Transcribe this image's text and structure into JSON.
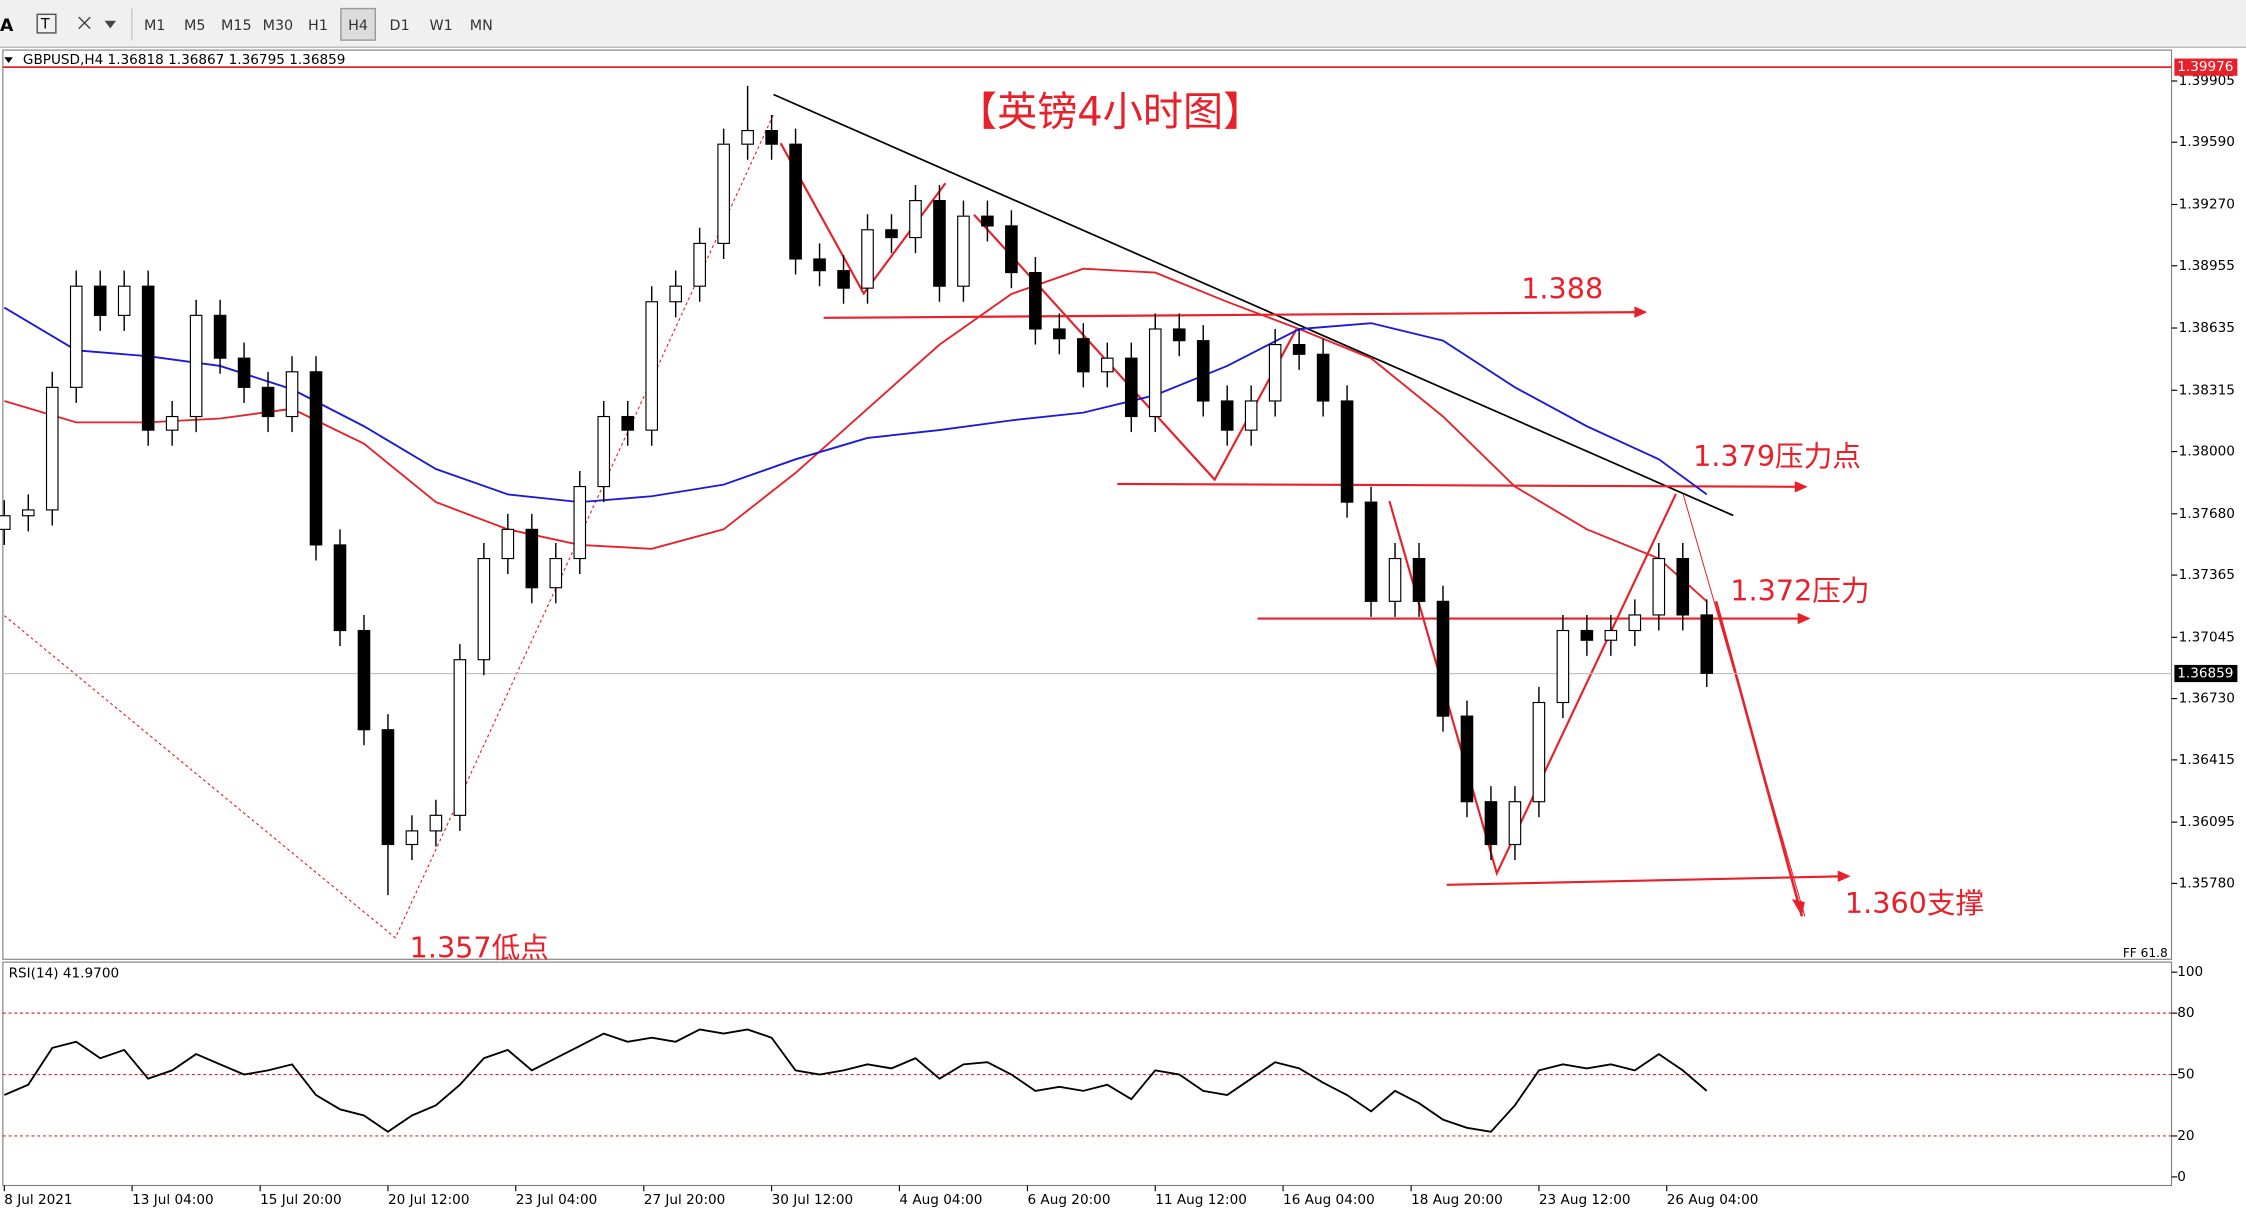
{
  "toolbar": {
    "buttons": [
      "M1",
      "M5",
      "M15",
      "M30",
      "H1",
      "H4",
      "D1",
      "W1",
      "MN"
    ]
  },
  "chart_data": {
    "type": "candlestick",
    "title": "【英镑4小时图】",
    "info": "GBPUSD,H4  1.36818 1.36867 1.36795 1.36859",
    "open": [
      1.376,
      1.3767,
      1.377,
      1.3833,
      1.3885,
      1.387,
      1.3885,
      1.3811,
      1.3818,
      1.387,
      1.3848,
      1.3833,
      1.3818,
      1.3841,
      1.3752,
      1.3708,
      1.3657,
      1.3598,
      1.3605,
      1.3613,
      1.3693,
      1.3745,
      1.376,
      1.373,
      1.3745,
      1.3782,
      1.3818,
      1.3811,
      1.3877,
      1.3885,
      1.3907,
      1.3958,
      1.3965,
      1.3958,
      1.3899,
      1.3893,
      1.3884,
      1.3914,
      1.391,
      1.3929,
      1.3885,
      1.3921,
      1.3916,
      1.3892,
      1.3863,
      1.3858,
      1.3841,
      1.3848,
      1.3818,
      1.3863,
      1.3857,
      1.3826,
      1.3811,
      1.3826,
      1.3855,
      1.385,
      1.3826,
      1.3774,
      1.3723,
      1.3745,
      1.3723,
      1.3664,
      1.362,
      1.3598,
      1.362,
      1.3671,
      1.3708,
      1.3703,
      1.3708,
      1.3716,
      1.3745,
      1.3716
    ],
    "high": [
      1.3775,
      1.3778,
      1.3841,
      1.3893,
      1.3893,
      1.3893,
      1.3893,
      1.3826,
      1.3878,
      1.3878,
      1.3856,
      1.3841,
      1.3849,
      1.3849,
      1.376,
      1.3716,
      1.3665,
      1.3613,
      1.3621,
      1.3701,
      1.3753,
      1.3768,
      1.3768,
      1.3753,
      1.379,
      1.3826,
      1.3826,
      1.3885,
      1.3893,
      1.3915,
      1.3966,
      1.3988,
      1.3973,
      1.3966,
      1.3907,
      1.3901,
      1.3922,
      1.3922,
      1.3937,
      1.3937,
      1.3929,
      1.3929,
      1.3924,
      1.39,
      1.3871,
      1.3866,
      1.3856,
      1.3856,
      1.3871,
      1.3871,
      1.3865,
      1.3834,
      1.3834,
      1.3863,
      1.3863,
      1.3858,
      1.3834,
      1.3782,
      1.3753,
      1.3753,
      1.3731,
      1.3672,
      1.3628,
      1.3628,
      1.3679,
      1.3716,
      1.3716,
      1.3716,
      1.3724,
      1.3753,
      1.3753,
      1.3724
    ],
    "low": [
      1.3752,
      1.3759,
      1.3762,
      1.3825,
      1.3862,
      1.3862,
      1.3803,
      1.3803,
      1.381,
      1.384,
      1.3825,
      1.381,
      1.381,
      1.3744,
      1.37,
      1.3649,
      1.3572,
      1.359,
      1.3597,
      1.3605,
      1.3685,
      1.3737,
      1.3722,
      1.3722,
      1.3737,
      1.3774,
      1.3803,
      1.3803,
      1.3869,
      1.3877,
      1.3899,
      1.395,
      1.395,
      1.3891,
      1.3885,
      1.3876,
      1.3876,
      1.3902,
      1.3902,
      1.3877,
      1.3877,
      1.3908,
      1.3884,
      1.3855,
      1.385,
      1.3833,
      1.3833,
      1.381,
      1.381,
      1.3849,
      1.3818,
      1.3803,
      1.3803,
      1.3818,
      1.3842,
      1.3818,
      1.3766,
      1.3715,
      1.3715,
      1.3715,
      1.3656,
      1.3612,
      1.359,
      1.359,
      1.3612,
      1.3663,
      1.3695,
      1.3695,
      1.37,
      1.3708,
      1.3708,
      1.3679
    ],
    "close": [
      1.3767,
      1.377,
      1.3833,
      1.3885,
      1.387,
      1.3885,
      1.3811,
      1.3818,
      1.387,
      1.3848,
      1.3833,
      1.3818,
      1.3841,
      1.3752,
      1.3708,
      1.3657,
      1.3598,
      1.3605,
      1.3613,
      1.3693,
      1.3745,
      1.376,
      1.373,
      1.3745,
      1.3782,
      1.3818,
      1.3811,
      1.3877,
      1.3885,
      1.3907,
      1.3958,
      1.3965,
      1.3958,
      1.3899,
      1.3893,
      1.3884,
      1.3914,
      1.391,
      1.3929,
      1.3885,
      1.3921,
      1.3916,
      1.3892,
      1.3863,
      1.3858,
      1.3841,
      1.3848,
      1.3818,
      1.3863,
      1.3857,
      1.3826,
      1.3811,
      1.3826,
      1.3855,
      1.385,
      1.3826,
      1.3774,
      1.3723,
      1.3745,
      1.3723,
      1.3664,
      1.362,
      1.3598,
      1.362,
      1.3671,
      1.3708,
      1.3703,
      1.3708,
      1.3716,
      1.3745,
      1.3716,
      1.3686
    ],
    "xticks": [
      {
        "value": 0,
        "label": "8 Jul 2021"
      },
      {
        "value": 5.33,
        "label": "13 Jul 04:00"
      },
      {
        "value": 10.67,
        "label": "15 Jul 20:00"
      },
      {
        "value": 16,
        "label": "20 Jul 12:00"
      },
      {
        "value": 21.33,
        "label": "23 Jul 04:00"
      },
      {
        "value": 26.67,
        "label": "27 Jul 20:00"
      },
      {
        "value": 32,
        "label": "30 Jul 12:00"
      },
      {
        "value": 37.33,
        "label": "4 Aug 04:00"
      },
      {
        "value": 42.67,
        "label": "6 Aug 20:00"
      },
      {
        "value": 48,
        "label": "11 Aug 12:00"
      },
      {
        "value": 53.33,
        "label": "16 Aug 04:00"
      },
      {
        "value": 58.67,
        "label": "18 Aug 20:00"
      },
      {
        "value": 64,
        "label": "23 Aug 12:00"
      },
      {
        "value": 69.33,
        "label": "26 Aug 04:00"
      }
    ],
    "ylim": [
      1.3539,
      1.3999
    ],
    "yticks": [
      {
        "value": 1.39905,
        "label": "1.39905"
      },
      {
        "value": 1.3959,
        "label": "1.39590"
      },
      {
        "value": 1.3927,
        "label": "1.39270"
      },
      {
        "value": 1.38955,
        "label": "1.38955"
      },
      {
        "value": 1.38635,
        "label": "1.38635"
      },
      {
        "value": 1.38315,
        "label": "1.38315"
      },
      {
        "value": 1.38,
        "label": "1.38000"
      },
      {
        "value": 1.3768,
        "label": "1.37680"
      },
      {
        "value": 1.37365,
        "label": "1.37365"
      },
      {
        "value": 1.37045,
        "label": "1.37045"
      },
      {
        "value": 1.3673,
        "label": "1.36730"
      },
      {
        "value": 1.36415,
        "label": "1.36415"
      },
      {
        "value": 1.36095,
        "label": "1.36095"
      },
      {
        "value": 1.3578,
        "label": "1.35780"
      }
    ],
    "series": [
      {
        "color": "#e8202a",
        "x": [
          0,
          3,
          6,
          9,
          12,
          15,
          18,
          21,
          24,
          27,
          30,
          33,
          36,
          39,
          42,
          45,
          48,
          51,
          54,
          57,
          60,
          63,
          66,
          69,
          71
        ],
        "values": [
          1.3826,
          1.3815,
          1.3815,
          1.3817,
          1.3822,
          1.3804,
          1.3774,
          1.376,
          1.3752,
          1.375,
          1.376,
          1.3789,
          1.3822,
          1.3855,
          1.3881,
          1.3894,
          1.3892,
          1.3877,
          1.3863,
          1.3848,
          1.3818,
          1.3782,
          1.376,
          1.3745,
          1.3723
        ]
      },
      {
        "color": "#1a1ad8",
        "x": [
          0,
          3,
          6,
          9,
          12,
          15,
          18,
          21,
          24,
          27,
          30,
          33,
          36,
          39,
          42,
          45,
          48,
          51,
          54,
          57,
          60,
          63,
          66,
          69,
          71
        ],
        "values": [
          1.3874,
          1.3852,
          1.3849,
          1.3844,
          1.3832,
          1.3813,
          1.3791,
          1.3778,
          1.3774,
          1.3777,
          1.3783,
          1.3796,
          1.3807,
          1.3811,
          1.3816,
          1.382,
          1.3829,
          1.3844,
          1.3863,
          1.3866,
          1.3857,
          1.3833,
          1.3813,
          1.3796,
          1.3778
        ]
      }
    ],
    "current_price": 1.36859,
    "top_line": 1.39976,
    "fib_label": "FF 61.8",
    "annotations": [
      "1.388",
      "1.379压力点",
      "1.372压力",
      "1.360支撑",
      "1.357低点"
    ],
    "rsi": {
      "label": "RSI(14) 41.9700",
      "color": "#000000",
      "values": [
        40,
        45,
        63,
        66,
        58,
        62,
        48,
        52,
        60,
        55,
        50,
        52,
        55,
        40,
        33,
        30,
        22,
        30,
        35,
        45,
        58,
        62,
        52,
        58,
        64,
        70,
        66,
        68,
        66,
        72,
        70,
        72,
        68,
        52,
        50,
        52,
        55,
        53,
        58,
        48,
        55,
        56,
        50,
        42,
        44,
        42,
        45,
        38,
        52,
        50,
        42,
        40,
        48,
        56,
        53,
        46,
        40,
        32,
        42,
        36,
        28,
        24,
        22,
        35,
        52,
        55,
        53,
        55,
        52,
        60,
        52,
        42
      ],
      "ylim": [
        0,
        100
      ],
      "yticks": [
        100,
        80,
        50,
        20,
        0
      ],
      "levels": [
        80,
        50,
        20
      ]
    }
  }
}
